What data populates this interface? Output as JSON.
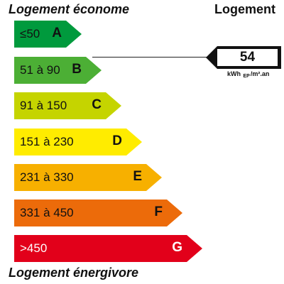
{
  "header": {
    "top_left": "Logement économe",
    "top_right": "Logement",
    "bottom_left": "Logement énergivore"
  },
  "bands": [
    {
      "letter": "A",
      "range": "≤50",
      "color": "#009a3d"
    },
    {
      "letter": "B",
      "range": "51 à 90",
      "color": "#4caf35"
    },
    {
      "letter": "C",
      "range": "91 à 150",
      "color": "#c5d400"
    },
    {
      "letter": "D",
      "range": "151 à 230",
      "color": "#ffec00"
    },
    {
      "letter": "E",
      "range": "231 à 330",
      "color": "#f7b000"
    },
    {
      "letter": "F",
      "range": "331 à 450",
      "color": "#ec6b0a"
    },
    {
      "letter": "G",
      "range": ">450",
      "color": "#e2001a"
    }
  ],
  "indicator": {
    "value": "54",
    "band": "B",
    "unit_main": "kWh",
    "unit_sub": "EP",
    "unit_tail": "/m².an"
  }
}
